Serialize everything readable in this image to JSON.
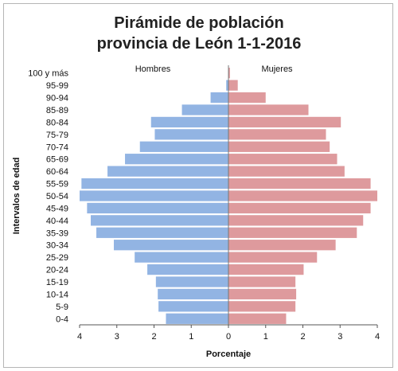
{
  "chart_data": {
    "type": "bar",
    "orientation": "horizontal",
    "title": "Pirámide de población",
    "subtitle": "provincia de León 1-1-2016",
    "xlabel": "Porcentaje",
    "ylabel": "Intervalos de edad",
    "xlim": [
      -4,
      4
    ],
    "x_tick_labels": [
      "4",
      "3",
      "2",
      "1",
      "0",
      "1",
      "2",
      "3",
      "4"
    ],
    "categories": [
      "100 y más",
      "95-99",
      "90-94",
      "85-89",
      "80-84",
      "75-79",
      "70-74",
      "65-69",
      "60-64",
      "55-59",
      "50-54",
      "45-49",
      "40-44",
      "35-39",
      "30-34",
      "25-29",
      "20-24",
      "15-19",
      "10-14",
      "5-9",
      "0-4"
    ],
    "series": [
      {
        "name": "Hombres",
        "color": "#92b4e3",
        "values": [
          0.01,
          0.06,
          0.48,
          1.25,
          2.08,
          1.98,
          2.38,
          2.78,
          3.25,
          3.95,
          4.0,
          3.8,
          3.7,
          3.55,
          3.08,
          2.52,
          2.18,
          1.95,
          1.9,
          1.88,
          1.68
        ]
      },
      {
        "name": "Mujeres",
        "color": "#de9a9d",
        "values": [
          0.04,
          0.25,
          1.0,
          2.15,
          3.02,
          2.62,
          2.72,
          2.92,
          3.12,
          3.82,
          4.0,
          3.82,
          3.62,
          3.45,
          2.88,
          2.38,
          2.02,
          1.8,
          1.82,
          1.8,
          1.55
        ]
      }
    ],
    "legend_placement": "inline labels above each side",
    "grid": false
  }
}
